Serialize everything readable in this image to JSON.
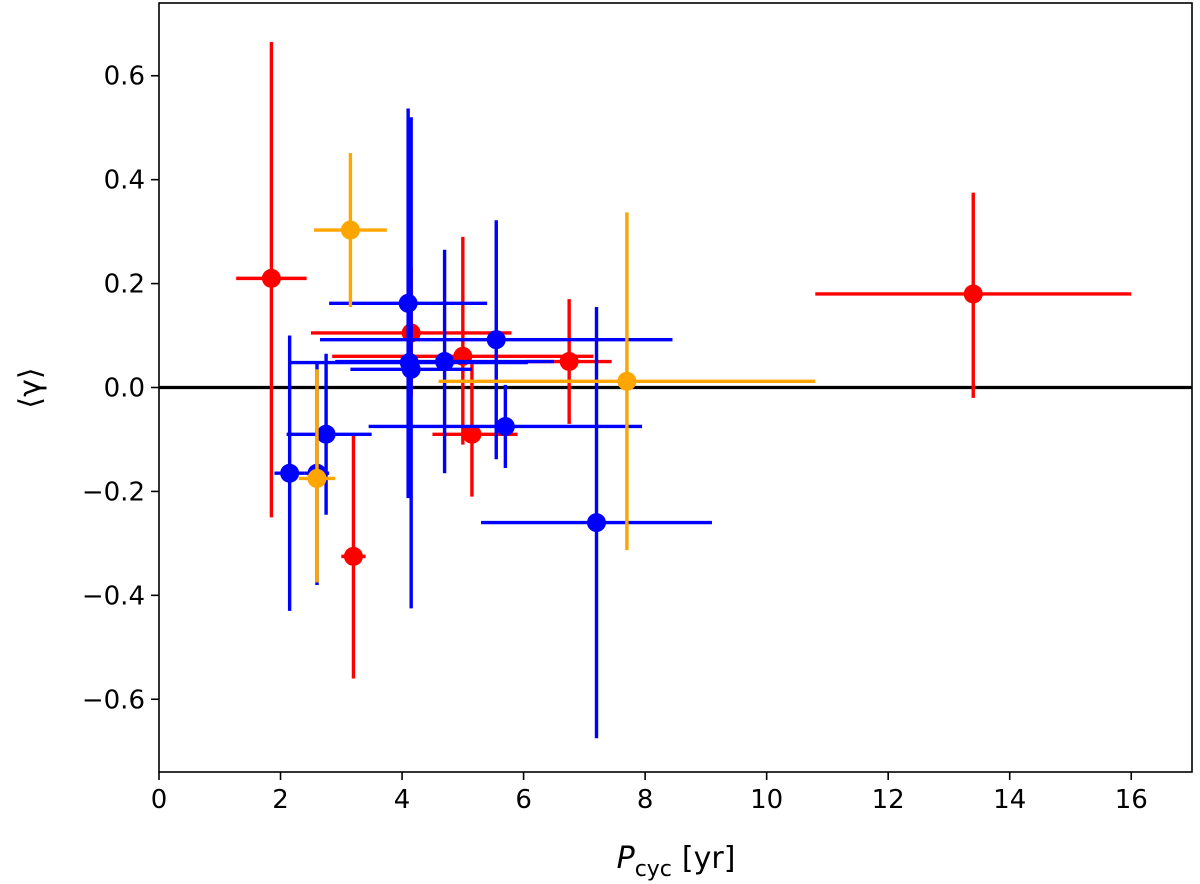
{
  "chart_data": {
    "type": "scatter",
    "title": "",
    "xlabel": {
      "main": "P",
      "sub": "cyc",
      "unit": "[yr]"
    },
    "ylabel": "⟨γ⟩",
    "xlim": [
      0,
      17
    ],
    "ylim": [
      -0.74,
      0.74
    ],
    "xticks": [
      {
        "value": 0,
        "label": "0"
      },
      {
        "value": 2,
        "label": "2"
      },
      {
        "value": 4,
        "label": "4"
      },
      {
        "value": 6,
        "label": "6"
      },
      {
        "value": 8,
        "label": "8"
      },
      {
        "value": 10,
        "label": "10"
      },
      {
        "value": 12,
        "label": "12"
      },
      {
        "value": 14,
        "label": "14"
      },
      {
        "value": 16,
        "label": "16"
      }
    ],
    "yticks": [
      {
        "value": 0.6,
        "label": "0.6"
      },
      {
        "value": 0.4,
        "label": "0.4"
      },
      {
        "value": 0.2,
        "label": "0.2"
      },
      {
        "value": 0.0,
        "label": "0.0"
      },
      {
        "value": -0.2,
        "label": "−0.2"
      },
      {
        "value": -0.4,
        "label": "−0.4"
      },
      {
        "value": -0.6,
        "label": "−0.6"
      }
    ],
    "reference_line": {
      "y": 0,
      "color": "#000000"
    },
    "series": [
      {
        "name": "red",
        "color": "#ff0000",
        "points": [
          {
            "x": 1.85,
            "y": 0.21,
            "xerr": [
              0.58,
              0.58
            ],
            "yerr": [
              0.46,
              0.455
            ]
          },
          {
            "x": 3.2,
            "y": -0.325,
            "xerr": [
              0.2,
              0.2
            ],
            "yerr": [
              0.235,
              0.235
            ]
          },
          {
            "x": 4.15,
            "y": 0.105,
            "xerr": [
              1.65,
              1.65
            ],
            "yerr": [
              0.12,
              0.125
            ]
          },
          {
            "x": 5.0,
            "y": 0.06,
            "xerr": [
              2.15,
              2.15
            ],
            "yerr": [
              0.17,
              0.23
            ]
          },
          {
            "x": 5.15,
            "y": -0.09,
            "xerr": [
              0.65,
              0.75
            ],
            "yerr": [
              0.12,
              0.135
            ]
          },
          {
            "x": 6.75,
            "y": 0.05,
            "xerr": [
              0.7,
              0.7
            ],
            "yerr": [
              0.12,
              0.12
            ]
          },
          {
            "x": 13.4,
            "y": 0.18,
            "xerr": [
              2.6,
              2.6
            ],
            "yerr": [
              0.2,
              0.195
            ]
          }
        ]
      },
      {
        "name": "blue",
        "color": "#0000ff",
        "points": [
          {
            "x": 2.15,
            "y": -0.165,
            "xerr": [
              0.25,
              0.25
            ],
            "yerr": [
              0.265,
              0.265
            ]
          },
          {
            "x": 2.6,
            "y": -0.165,
            "xerr": [
              0.2,
              0.2
            ],
            "yerr": [
              0.215,
              0.215
            ]
          },
          {
            "x": 2.75,
            "y": -0.09,
            "xerr": [
              0.65,
              0.75
            ],
            "yerr": [
              0.155,
              0.155
            ]
          },
          {
            "x": 4.1,
            "y": 0.162,
            "xerr": [
              1.3,
              1.3
            ],
            "yerr": [
              0.375,
              0.375
            ]
          },
          {
            "x": 4.12,
            "y": 0.048,
            "xerr": [
              1.95,
              1.95
            ],
            "yerr": [
              0.26,
              0.26
            ]
          },
          {
            "x": 4.15,
            "y": 0.035,
            "xerr": [
              1.0,
              1.0
            ],
            "yerr": [
              0.46,
              0.485
            ]
          },
          {
            "x": 4.7,
            "y": 0.05,
            "xerr": [
              1.8,
              1.8
            ],
            "yerr": [
              0.215,
              0.215
            ]
          },
          {
            "x": 5.55,
            "y": 0.092,
            "xerr": [
              2.9,
              2.9
            ],
            "yerr": [
              0.23,
              0.23
            ]
          },
          {
            "x": 5.7,
            "y": -0.075,
            "xerr": [
              2.25,
              2.25
            ],
            "yerr": [
              0.08,
              0.08
            ]
          },
          {
            "x": 7.2,
            "y": -0.26,
            "xerr": [
              1.9,
              1.9
            ],
            "yerr": [
              0.415,
              0.415
            ]
          }
        ]
      },
      {
        "name": "orange",
        "color": "#ffa500",
        "points": [
          {
            "x": 2.6,
            "y": -0.175,
            "xerr": [
              0.3,
              0.3
            ],
            "yerr": [
              0.2,
              0.21
            ]
          },
          {
            "x": 3.15,
            "y": 0.303,
            "xerr": [
              0.6,
              0.6
            ],
            "yerr": [
              0.148,
              0.148
            ]
          },
          {
            "x": 7.7,
            "y": 0.012,
            "xerr": [
              3.1,
              3.1
            ],
            "yerr": [
              0.325,
              0.325
            ]
          }
        ]
      }
    ]
  }
}
